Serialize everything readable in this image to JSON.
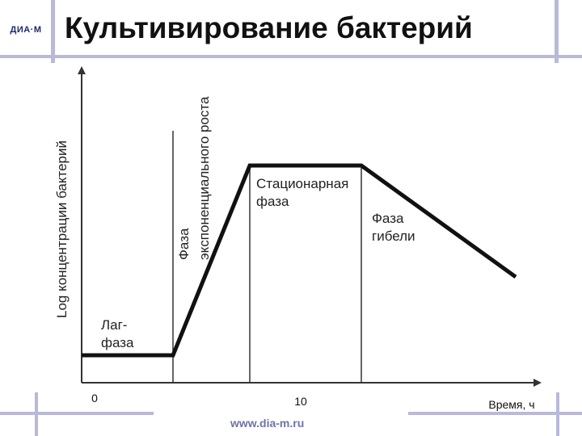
{
  "header": {
    "title": "Культивирование бактерий",
    "logo_text": "ДИА·М"
  },
  "footer": {
    "website": "www.dia-m.ru"
  },
  "diagram": {
    "y_axis_label": "Log концентрации бактерий",
    "x_axis_label": "Время, ч",
    "x_ticks": [
      "0",
      "10"
    ],
    "phases": {
      "lag": [
        "Лаг-",
        "фаза"
      ],
      "exponential": [
        "Фаза",
        "экспоненциального роста"
      ],
      "stationary": [
        "Стационарная",
        "фаза"
      ],
      "death": [
        "Фаза",
        "гибели"
      ]
    }
  }
}
